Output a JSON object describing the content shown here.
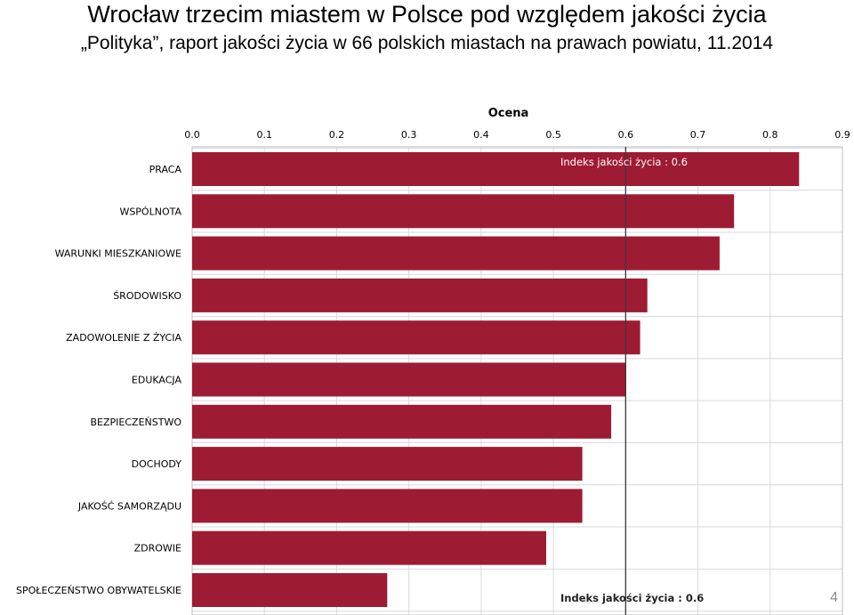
{
  "slide": {
    "title": "Wrocław trzecim miastem w Polsce pod względem jakości życia",
    "subtitle": "„Polityka”, raport jakości życia w 66 polskich miastach na prawach powiatu, 11.2014",
    "page_number": "4"
  },
  "chart_data": {
    "type": "bar",
    "orientation": "horizontal",
    "xlabel": "Ocena",
    "xlim": [
      0,
      0.9
    ],
    "xticks": [
      "0.0",
      "0.1",
      "0.2",
      "0.3",
      "0.4",
      "0.5",
      "0.6",
      "0.7",
      "0.8",
      "0.9"
    ],
    "grid": true,
    "categories": [
      "PRACA",
      "WSPÓLNOTA",
      "WARUNKI MIESZKANIOWE",
      "ŚRODOWISKO",
      "ZADOWOLENIE Z ŻYCIA",
      "EDUKACJA",
      "BEZPIECZEŃSTWO",
      "DOCHODY",
      "JAKOŚĆ SAMORZĄDU",
      "ZDROWIE",
      "SPOŁECZEŃSTWO OBYWATELSKIE"
    ],
    "values": [
      0.84,
      0.75,
      0.73,
      0.63,
      0.62,
      0.6,
      0.58,
      0.54,
      0.54,
      0.49,
      0.27
    ],
    "reference_line": {
      "value": 0.6,
      "label_top": "Indeks jakości życia : 0.6",
      "label_bottom": "Indeks jakości życia : 0.6"
    },
    "colors": {
      "bar": "#9e1b34",
      "grid": "#d9d9d9",
      "reference_line": "#3a3a3a",
      "text": "#000000"
    }
  }
}
